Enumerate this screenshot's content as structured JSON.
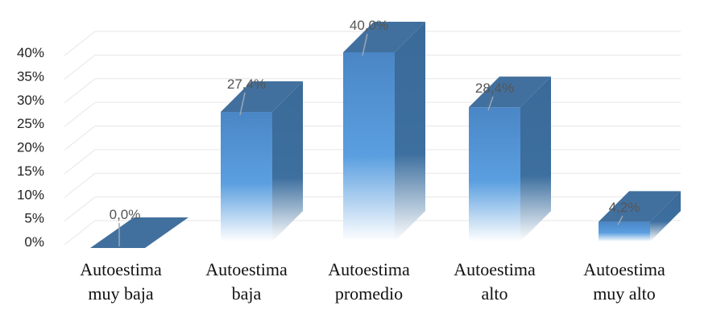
{
  "chart_data": {
    "type": "bar",
    "categories": [
      [
        "Autoestima",
        "muy baja"
      ],
      [
        "Autoestima",
        "baja"
      ],
      [
        "Autoestima",
        "promedio"
      ],
      [
        "Autoestima",
        "alto"
      ],
      [
        "Autoestima",
        "muy alto"
      ]
    ],
    "values": [
      0.0,
      27.4,
      40.0,
      28.4,
      4.2
    ],
    "data_labels": [
      "0,0%",
      "27,4%",
      "40,0%",
      "28,4%",
      "4,2%"
    ],
    "y_ticks": [
      "0%",
      "5%",
      "10%",
      "15%",
      "20%",
      "25%",
      "30%",
      "35%",
      "40%"
    ],
    "ylim": [
      0,
      40
    ],
    "grid": true,
    "legend": "none",
    "colors": {
      "front_top": "#4f8fd0",
      "front_mid": "#5ea0e0",
      "front_bottom": "#ffffff",
      "side": "#3b6e9e",
      "top": "#42709e",
      "grid": "#e6e6e6",
      "leader": "#9aa7b5"
    }
  }
}
